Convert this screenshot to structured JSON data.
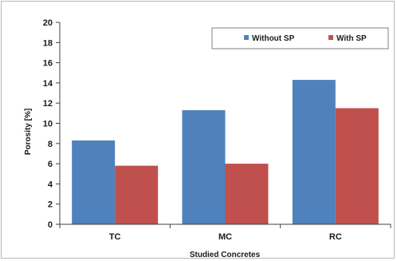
{
  "chart_data": {
    "type": "bar",
    "categories": [
      "TC",
      "MC",
      "RC"
    ],
    "series": [
      {
        "name": "Without SP",
        "values": [
          8.3,
          11.3,
          14.3
        ],
        "color": "#4f81bd"
      },
      {
        "name": "With SP",
        "values": [
          5.8,
          6.0,
          11.5
        ],
        "color": "#c0504d"
      }
    ],
    "xlabel": "Studied Concretes",
    "ylabel": "Porosity [%]",
    "ylim": [
      0,
      20
    ],
    "yticks": [
      "0",
      "2",
      "4",
      "6",
      "8",
      "10",
      "12",
      "14",
      "16",
      "18",
      "20"
    ],
    "grid": false,
    "legend_position": "top-right"
  }
}
